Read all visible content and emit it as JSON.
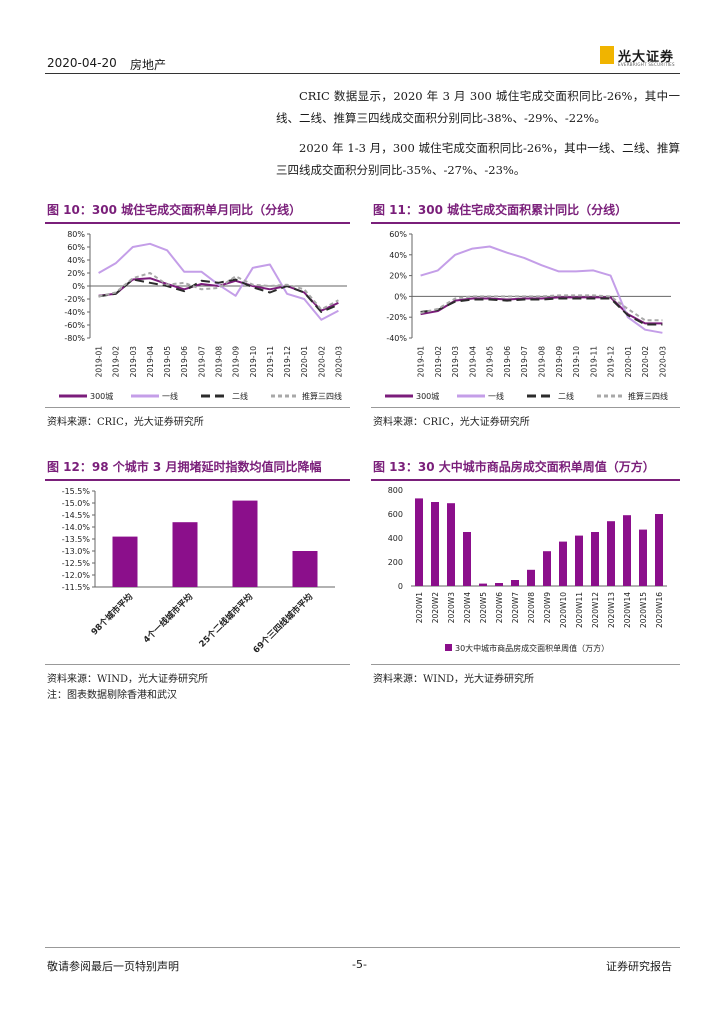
{
  "header": {
    "date": "2020-04-20",
    "sector": "房地产",
    "brand": "光大证券",
    "brand_en": "EVERBRIGHT SECURITIES"
  },
  "body_text": [
    "CRIC 数据显示，2020 年 3 月 300 城住宅成交面积同比-26%，其中一线、二线、推算三四线成交面积分别同比-38%、-29%、-22%。",
    "2020 年 1-3 月，300 城住宅成交面积同比-26%，其中一线、二线、推算三四线成交面积分别同比-35%、-27%、-23%。"
  ],
  "figures": {
    "fig10": {
      "title": "图 10：300 城住宅成交面积单月同比（分线）",
      "source": "资料来源：CRIC，光大证券研究所"
    },
    "fig11": {
      "title": "图 11：300 城住宅成交面积累计同比（分线）",
      "source": "资料来源：CRIC，光大证券研究所"
    },
    "fig12": {
      "title": "图 12：98 个城市 3 月拥堵延时指数均值同比降幅",
      "source": "资料来源：WIND，光大证券研究所",
      "note": "注：图表数据剔除香港和武汉"
    },
    "fig13": {
      "title": "图 13：30 大中城市商品房成交面积单周值（万方）",
      "source": "资料来源：WIND，光大证券研究所"
    }
  },
  "footer": {
    "left": "敬请参阅最后一页特别声明",
    "center": "-5-",
    "right": "证券研究报告"
  },
  "chart_data": [
    {
      "id": "fig10",
      "type": "line",
      "x": [
        "2019-01",
        "2019-02",
        "2019-03",
        "2019-04",
        "2019-05",
        "2019-06",
        "2019-07",
        "2019-08",
        "2019-09",
        "2019-10",
        "2019-11",
        "2019-12",
        "2020-01",
        "2020-02",
        "2020-03"
      ],
      "ylim": [
        -80,
        80
      ],
      "yticks": [
        80,
        60,
        40,
        20,
        0,
        -20,
        -40,
        -60,
        -80
      ],
      "ytick_labels": [
        "80%",
        "60%",
        "40%",
        "20%",
        "0%",
        "-20%",
        "-40%",
        "-60%",
        "-80%"
      ],
      "series": [
        {
          "name": "300城",
          "color": "#7b1c7b",
          "dash": "",
          "values": [
            -15,
            -12,
            10,
            12,
            3,
            -5,
            3,
            0,
            8,
            0,
            -5,
            0,
            -10,
            -38,
            -26
          ]
        },
        {
          "name": "一线",
          "color": "#c49ee8",
          "dash": "",
          "values": [
            20,
            35,
            60,
            65,
            55,
            22,
            22,
            2,
            -15,
            28,
            33,
            -12,
            -20,
            -52,
            -38
          ]
        },
        {
          "name": "二线",
          "color": "#2b2b2b",
          "dash": "9,5",
          "values": [
            -16,
            -12,
            10,
            5,
            0,
            -8,
            8,
            5,
            10,
            -2,
            -10,
            0,
            -10,
            -40,
            -29
          ]
        },
        {
          "name": "推算三四线",
          "color": "#a8a8a8",
          "dash": "4,3",
          "values": [
            -16,
            -10,
            12,
            20,
            2,
            5,
            -5,
            -3,
            15,
            2,
            0,
            2,
            -5,
            -36,
            -22
          ]
        }
      ]
    },
    {
      "id": "fig11",
      "type": "line",
      "x": [
        "2019-01",
        "2019-02",
        "2019-03",
        "2019-04",
        "2019-05",
        "2019-06",
        "2019-07",
        "2019-08",
        "2019-09",
        "2019-10",
        "2019-11",
        "2019-12",
        "2020-01",
        "2020-02",
        "2020-03"
      ],
      "ylim": [
        -40,
        60
      ],
      "yticks": [
        60,
        40,
        20,
        0,
        -20,
        -40
      ],
      "ytick_labels": [
        "60%",
        "40%",
        "20%",
        "0%",
        "-20%",
        "-40%"
      ],
      "series": [
        {
          "name": "300城",
          "color": "#7b1c7b",
          "dash": "",
          "values": [
            -17,
            -14,
            -4,
            -2,
            -2,
            -3,
            -2,
            -2,
            -1,
            -1,
            -1,
            -1,
            -17,
            -26,
            -26
          ]
        },
        {
          "name": "一线",
          "color": "#c49ee8",
          "dash": "",
          "values": [
            20,
            25,
            40,
            46,
            48,
            42,
            37,
            30,
            24,
            24,
            25,
            20,
            -20,
            -32,
            -35
          ]
        },
        {
          "name": "二线",
          "color": "#2b2b2b",
          "dash": "9,5",
          "values": [
            -15,
            -13,
            -5,
            -3,
            -3,
            -4,
            -3,
            -3,
            -2,
            -2,
            -2,
            -2,
            -18,
            -27,
            -27
          ]
        },
        {
          "name": "推算三四线",
          "color": "#a8a8a8",
          "dash": "4,3",
          "values": [
            -16,
            -12,
            -2,
            0,
            0,
            0,
            0,
            0,
            1,
            1,
            1,
            0,
            -12,
            -23,
            -23
          ]
        }
      ]
    },
    {
      "id": "fig12",
      "type": "bar",
      "categories": [
        "98个城市平均",
        "4个一线城市平均",
        "25个二线城市平均",
        "69个三四线城市平均"
      ],
      "values": [
        -13.6,
        -14.2,
        -15.1,
        -13.0
      ],
      "ylim": [
        -11.5,
        -15.5
      ],
      "yticks": [
        -15.5,
        -15.0,
        -14.5,
        -14.0,
        -13.5,
        -13.0,
        -12.5,
        -12.0,
        -11.5
      ],
      "ytick_labels": [
        "-15.5%",
        "-15.0%",
        "-14.5%",
        "-14.0%",
        "-13.5%",
        "-13.0%",
        "-12.5%",
        "-12.0%",
        "-11.5%"
      ],
      "color": "#8b0f8b"
    },
    {
      "id": "fig13",
      "type": "bar",
      "categories": [
        "2020W1",
        "2020W2",
        "2020W3",
        "2020W4",
        "2020W5",
        "2020W6",
        "2020W7",
        "2020W8",
        "2020W9",
        "2020W10",
        "2020W11",
        "2020W12",
        "2020W13",
        "2020W14",
        "2020W15",
        "2020W16"
      ],
      "values": [
        730,
        700,
        690,
        450,
        20,
        25,
        50,
        135,
        290,
        370,
        420,
        450,
        540,
        590,
        470,
        600
      ],
      "ylim": [
        0,
        800
      ],
      "yticks": [
        800,
        600,
        400,
        200,
        0
      ],
      "ytick_labels": [
        "800",
        "600",
        "400",
        "200",
        "0"
      ],
      "legend": "30大中城市商品房成交面积单周值（万方）",
      "color": "#8b0f8b"
    }
  ]
}
